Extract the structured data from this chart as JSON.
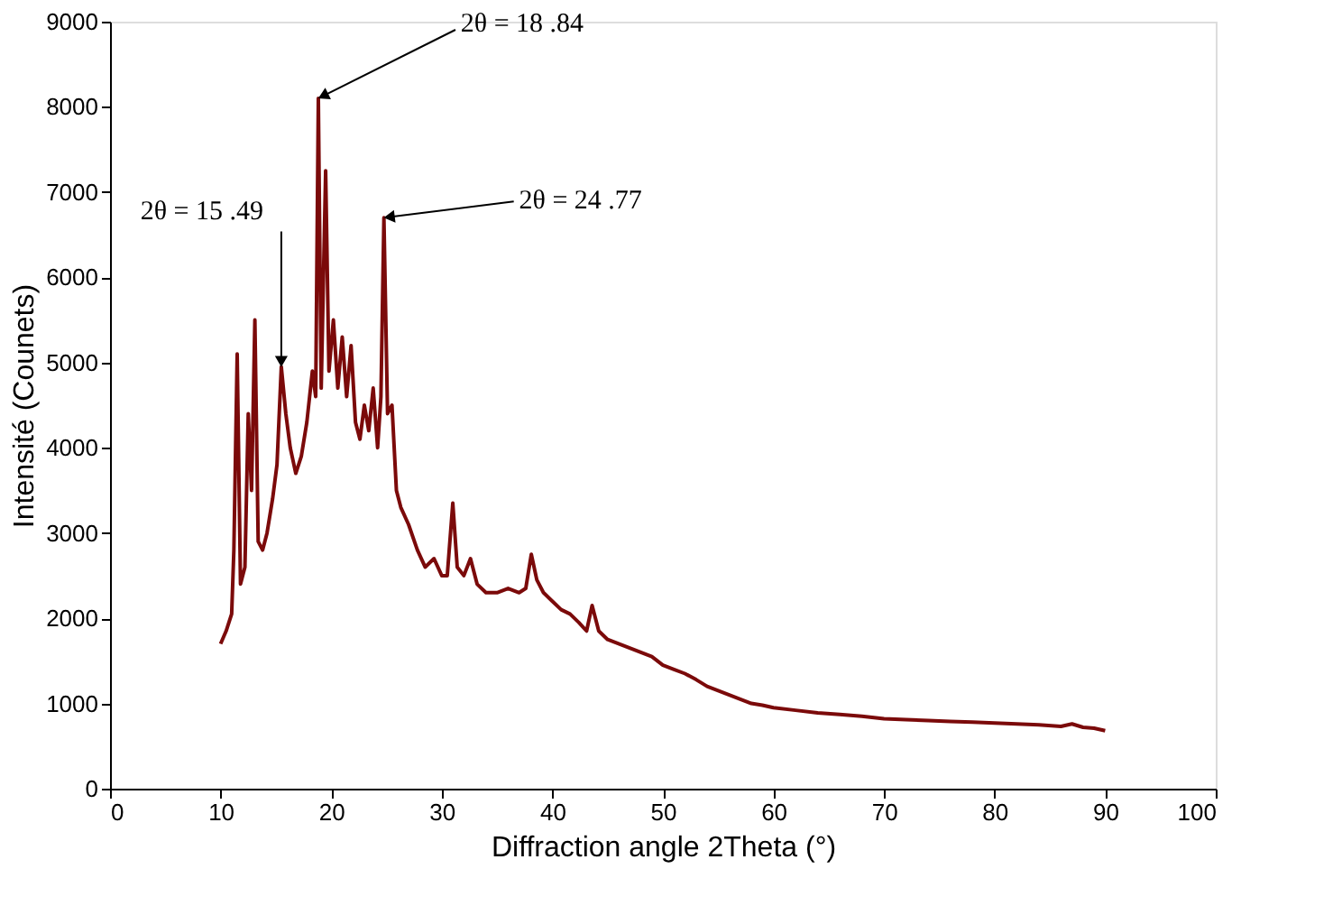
{
  "chart_data": {
    "type": "line",
    "xlabel": "Diffraction angle 2Theta (°)",
    "ylabel": "Intensité (Counets)",
    "xlim": [
      0,
      100
    ],
    "xticks": [
      0,
      10,
      20,
      30,
      40,
      50,
      60,
      70,
      80,
      90,
      100
    ],
    "ylim": [
      0,
      9000
    ],
    "yticks": [
      0,
      1000,
      2000,
      3000,
      4000,
      5000,
      6000,
      7000,
      8000,
      9000
    ],
    "grid": false,
    "marker": "none",
    "line_style": "solid",
    "series": [
      {
        "color": "#7b0a0a",
        "x": [
          10,
          10.5,
          11,
          11.2,
          11.5,
          11.8,
          12.2,
          12.5,
          12.8,
          13.1,
          13.4,
          13.8,
          14.2,
          14.7,
          15.1,
          15.49,
          15.9,
          16.3,
          16.8,
          17.3,
          17.8,
          18.3,
          18.6,
          18.84,
          19.1,
          19.5,
          19.8,
          20.2,
          20.6,
          21,
          21.4,
          21.8,
          22.2,
          22.6,
          23,
          23.4,
          23.8,
          24.2,
          24.5,
          24.77,
          25.1,
          25.5,
          25.9,
          26.3,
          27,
          27.8,
          28.5,
          29.3,
          30,
          30.5,
          31,
          31.4,
          32,
          32.6,
          33.2,
          34,
          35,
          36,
          37,
          37.6,
          38.1,
          38.6,
          39.2,
          40,
          40.8,
          41.6,
          42.4,
          43.1,
          43.6,
          44.2,
          45,
          46,
          47,
          48,
          49,
          50,
          51,
          52,
          53,
          54,
          55,
          56,
          57,
          58,
          59,
          60,
          62,
          64,
          66,
          68,
          70,
          72,
          74,
          76,
          78,
          80,
          82,
          84,
          86,
          87,
          88,
          89,
          90
        ],
        "values": [
          1700,
          1850,
          2050,
          2800,
          5100,
          2400,
          2600,
          4400,
          3500,
          5500,
          2900,
          2800,
          3000,
          3400,
          3800,
          4950,
          4400,
          4000,
          3700,
          3900,
          4300,
          4900,
          4600,
          8100,
          4700,
          7250,
          4900,
          5500,
          4700,
          5300,
          4600,
          5200,
          4300,
          4100,
          4500,
          4200,
          4700,
          4000,
          4600,
          6700,
          4400,
          4500,
          3500,
          3300,
          3100,
          2800,
          2600,
          2700,
          2500,
          2500,
          3350,
          2600,
          2500,
          2700,
          2400,
          2300,
          2300,
          2350,
          2300,
          2350,
          2750,
          2450,
          2300,
          2200,
          2100,
          2050,
          1950,
          1850,
          2150,
          1850,
          1750,
          1700,
          1650,
          1600,
          1550,
          1450,
          1400,
          1350,
          1280,
          1200,
          1150,
          1100,
          1050,
          1000,
          980,
          950,
          920,
          890,
          870,
          850,
          820,
          810,
          800,
          790,
          780,
          770,
          760,
          750,
          730,
          760,
          720,
          710,
          680
        ]
      }
    ],
    "annotations": [
      {
        "text": "2θ = 15 .49",
        "x": 15.49,
        "y": 4950
      },
      {
        "text": "2θ = 18 .84",
        "x": 18.84,
        "y": 8100
      },
      {
        "text": "2θ = 24 .77",
        "x": 24.77,
        "y": 6700
      }
    ]
  }
}
